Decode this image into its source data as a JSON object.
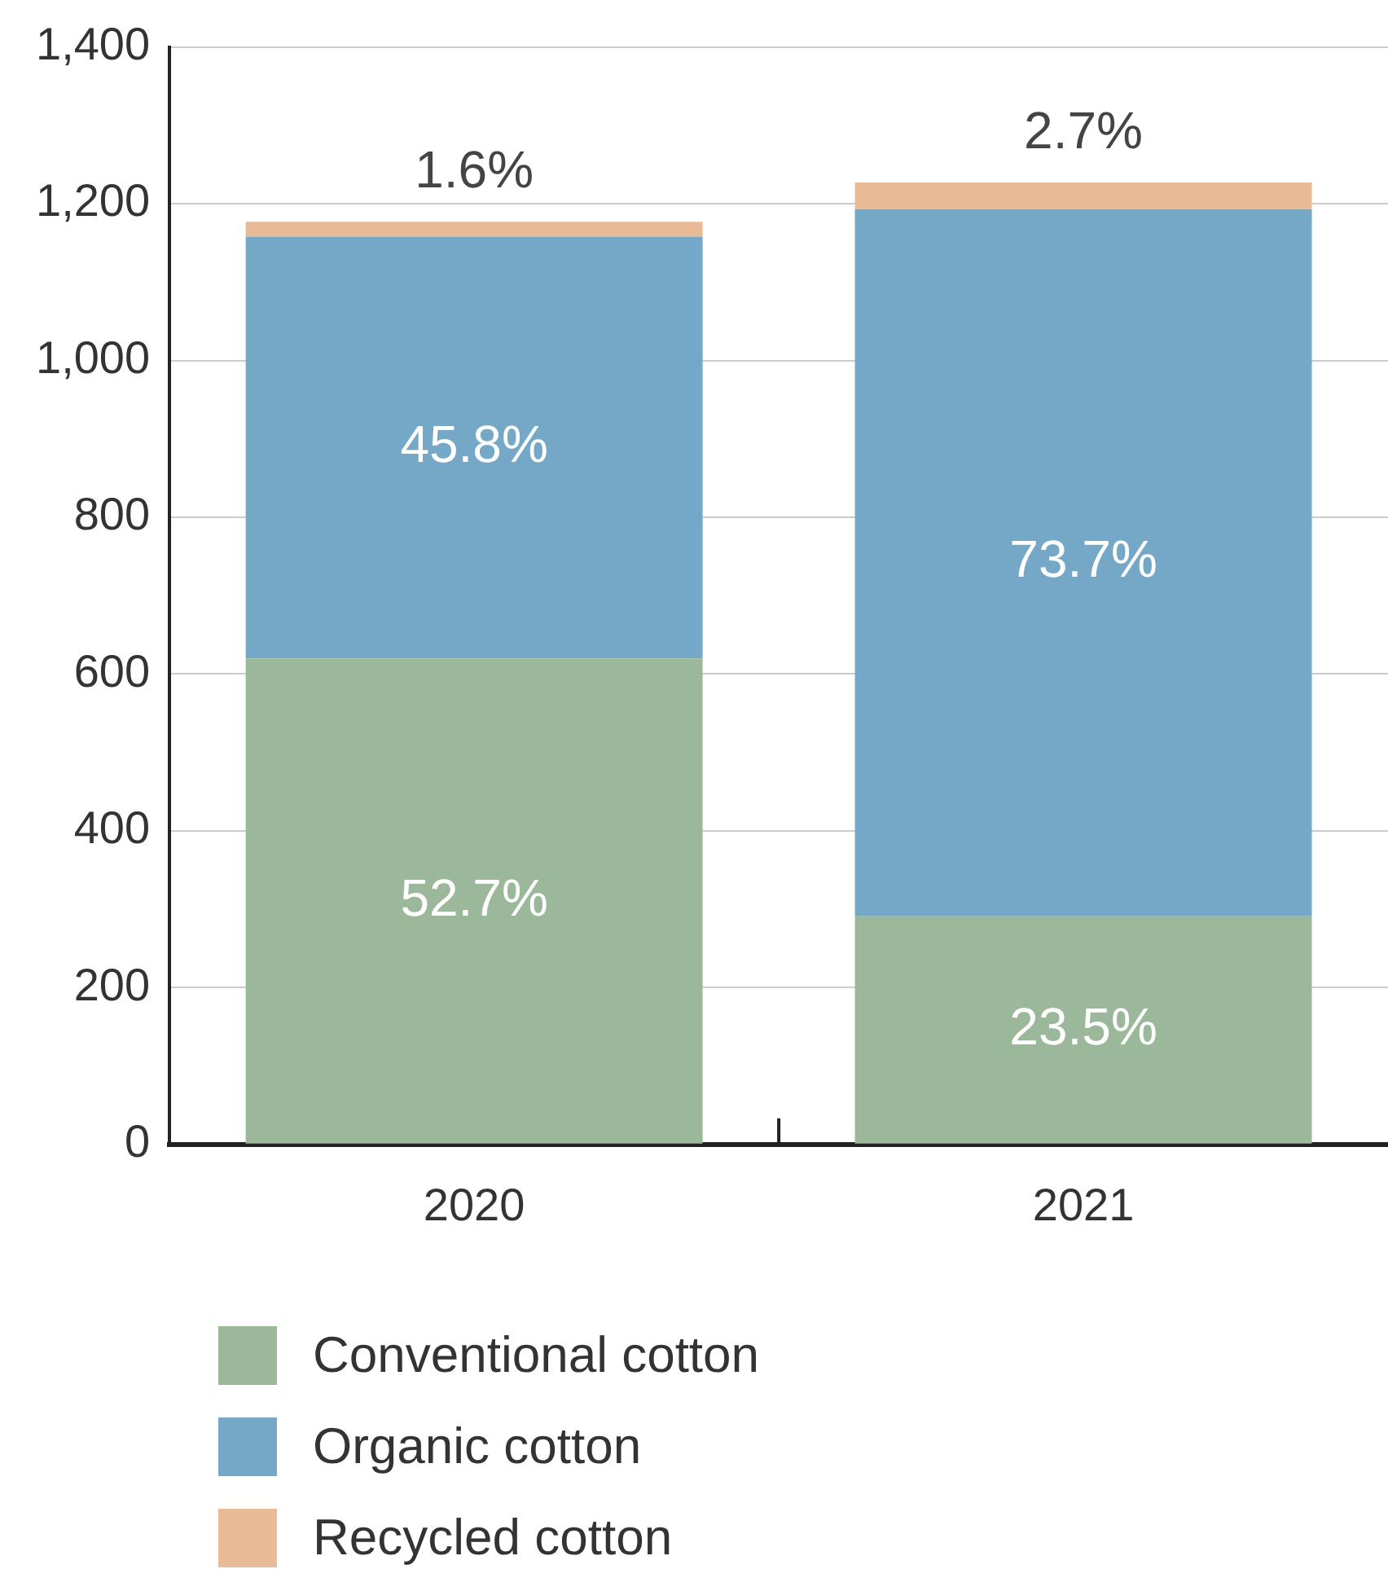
{
  "chart_data": {
    "type": "bar",
    "stacked": true,
    "categories": [
      "2020",
      "2021"
    ],
    "series": [
      {
        "name": "Conventional cotton",
        "color": "#9bb89a",
        "values": [
          620,
          291
        ]
      },
      {
        "name": "Organic cotton",
        "color": "#74a8c6",
        "values": [
          538,
          902
        ]
      },
      {
        "name": "Recycled cotton",
        "color": "#e8bb96",
        "values": [
          19,
          34
        ]
      }
    ],
    "annotations": [
      "52.7%",
      "23.5%",
      "45.8%",
      "73.7%",
      "1.6%",
      "2.7%"
    ],
    "ylim": [
      0,
      1400
    ],
    "yticks": [
      0,
      {
        "value": 200,
        "label": "200"
      },
      {
        "value": 400,
        "label": "400"
      },
      {
        "value": 600,
        "label": "600"
      },
      {
        "value": 800,
        "label": "800"
      },
      {
        "value": 1000,
        "label": "1,000"
      },
      {
        "value": 1200,
        "label": "1,200"
      },
      {
        "value": 1400,
        "label": "1,400"
      }
    ],
    "grid": "y",
    "legend": "bottom"
  }
}
